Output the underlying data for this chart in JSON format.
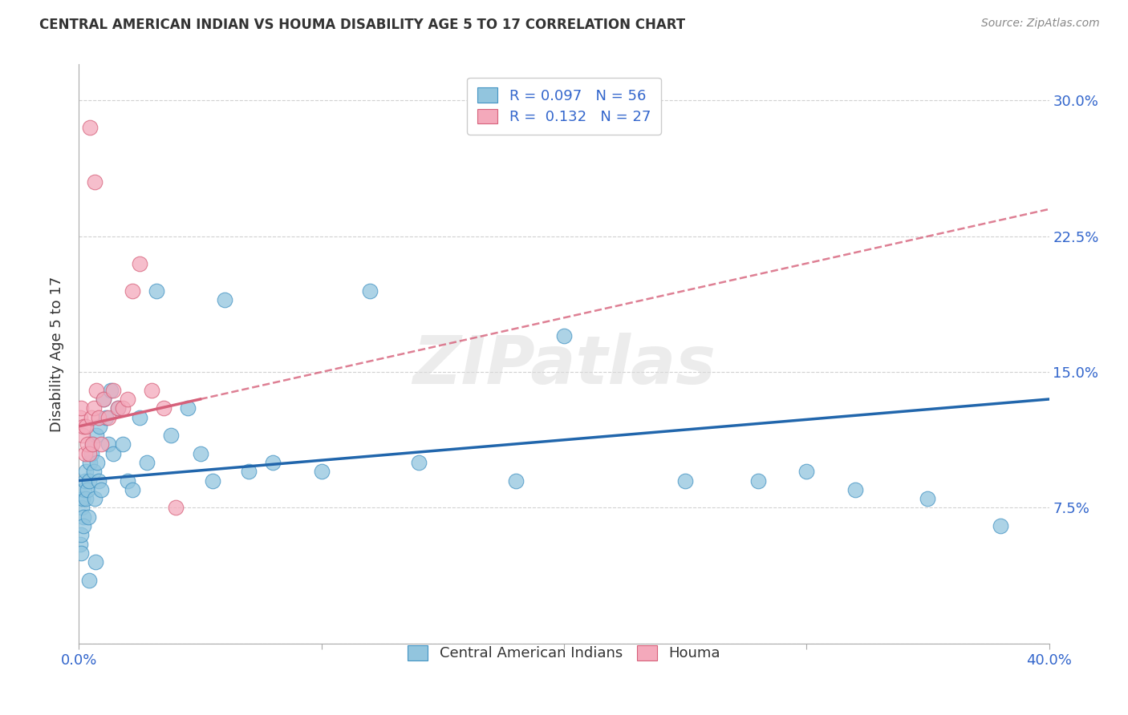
{
  "title": "CENTRAL AMERICAN INDIAN VS HOUMA DISABILITY AGE 5 TO 17 CORRELATION CHART",
  "source": "Source: ZipAtlas.com",
  "ylabel": "Disability Age 5 to 17",
  "xlim": [
    0.0,
    40.0
  ],
  "ylim": [
    0.0,
    32.0
  ],
  "yticks": [
    0.0,
    7.5,
    15.0,
    22.5,
    30.0
  ],
  "xticks": [
    0.0,
    10.0,
    20.0,
    30.0,
    40.0
  ],
  "blue_color": "#92c5de",
  "pink_color": "#f4a9bb",
  "blue_edge_color": "#4393c3",
  "pink_edge_color": "#d6607a",
  "blue_line_color": "#2166ac",
  "pink_line_color": "#d6607a",
  "background_color": "#ffffff",
  "watermark": "ZIPatlas",
  "blue_x": [
    0.05,
    0.08,
    0.1,
    0.12,
    0.15,
    0.18,
    0.2,
    0.22,
    0.25,
    0.28,
    0.3,
    0.35,
    0.38,
    0.4,
    0.45,
    0.5,
    0.55,
    0.6,
    0.65,
    0.7,
    0.75,
    0.8,
    0.85,
    0.9,
    1.0,
    1.1,
    1.2,
    1.3,
    1.4,
    1.6,
    1.8,
    2.0,
    2.2,
    2.5,
    2.8,
    3.2,
    3.8,
    4.5,
    5.0,
    5.5,
    6.0,
    7.0,
    8.0,
    10.0,
    12.0,
    14.0,
    18.0,
    20.0,
    25.0,
    28.0,
    30.0,
    32.0,
    35.0,
    38.0,
    0.42,
    0.68
  ],
  "blue_y": [
    5.5,
    6.0,
    5.0,
    7.5,
    8.0,
    7.0,
    6.5,
    8.5,
    9.0,
    8.0,
    9.5,
    8.5,
    7.0,
    9.0,
    10.0,
    10.5,
    11.0,
    9.5,
    8.0,
    11.5,
    10.0,
    9.0,
    12.0,
    8.5,
    13.5,
    12.5,
    11.0,
    14.0,
    10.5,
    13.0,
    11.0,
    9.0,
    8.5,
    12.5,
    10.0,
    19.5,
    11.5,
    13.0,
    10.5,
    9.0,
    19.0,
    9.5,
    10.0,
    9.5,
    19.5,
    10.0,
    9.0,
    17.0,
    9.0,
    9.0,
    9.5,
    8.5,
    8.0,
    6.5,
    3.5,
    4.5
  ],
  "pink_x": [
    0.05,
    0.1,
    0.15,
    0.2,
    0.25,
    0.3,
    0.35,
    0.4,
    0.5,
    0.55,
    0.6,
    0.7,
    0.8,
    0.9,
    1.0,
    1.2,
    1.4,
    1.6,
    1.8,
    2.0,
    2.2,
    2.5,
    3.0,
    3.5,
    4.0,
    0.45,
    0.65
  ],
  "pink_y": [
    12.5,
    13.0,
    11.5,
    12.0,
    10.5,
    12.0,
    11.0,
    10.5,
    12.5,
    11.0,
    13.0,
    14.0,
    12.5,
    11.0,
    13.5,
    12.5,
    14.0,
    13.0,
    13.0,
    13.5,
    19.5,
    21.0,
    14.0,
    13.0,
    7.5,
    28.5,
    25.5
  ],
  "blue_line_x0": 0.0,
  "blue_line_y0": 9.0,
  "blue_line_x1": 40.0,
  "blue_line_y1": 13.5,
  "pink_line_x0": 0.0,
  "pink_line_y0": 12.0,
  "pink_line_x1_solid": 5.0,
  "pink_line_x1": 40.0,
  "pink_line_y1": 24.0
}
